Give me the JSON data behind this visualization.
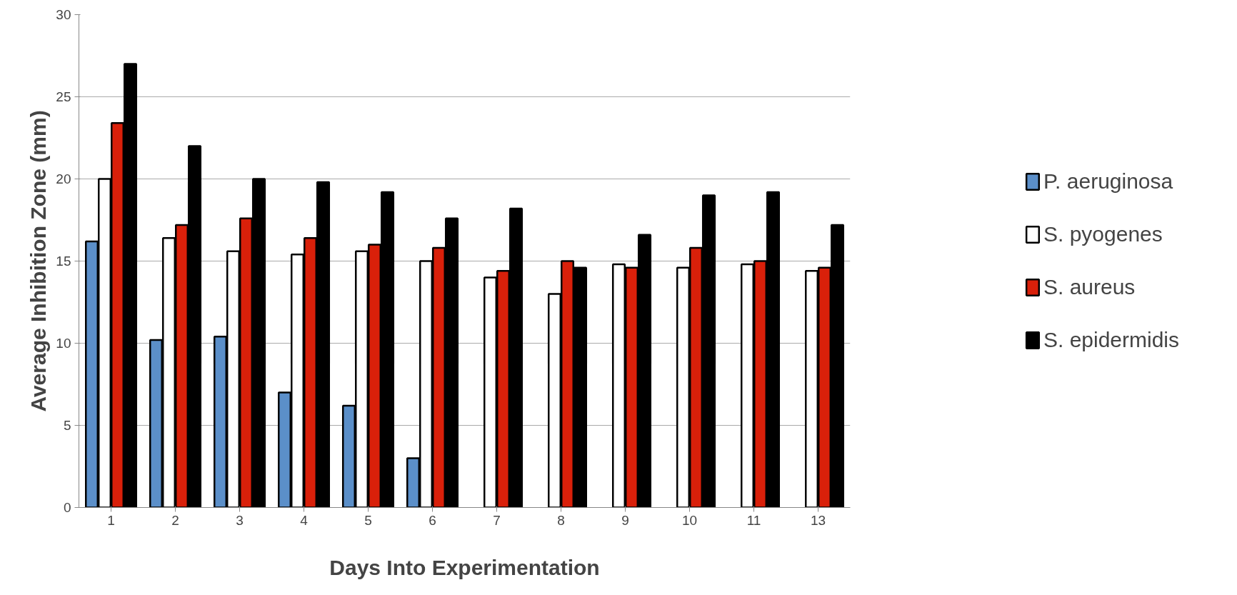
{
  "chart_data": {
    "type": "bar",
    "xlabel": "Days Into Experimentation",
    "ylabel": "Average Inhibition Zone (mm)",
    "categories": [
      "1",
      "2",
      "3",
      "4",
      "5",
      "6",
      "7",
      "8",
      "9",
      "10",
      "11",
      "13"
    ],
    "series": [
      {
        "name": "P. aeruginosa",
        "color": "#5b8fc9",
        "values": [
          16.2,
          10.2,
          10.4,
          7,
          6.2,
          3,
          null,
          null,
          null,
          null,
          null,
          null
        ]
      },
      {
        "name": "S. pyogenes",
        "color": "#ffffff",
        "values": [
          20,
          16.4,
          15.6,
          15.4,
          15.6,
          15,
          14,
          13,
          14.8,
          14.6,
          14.8,
          14.4
        ]
      },
      {
        "name": "S. aureus",
        "color": "#d9200a",
        "values": [
          23.4,
          17.2,
          17.6,
          16.4,
          16,
          15.8,
          14.4,
          15,
          14.6,
          15.8,
          15,
          14.6
        ]
      },
      {
        "name": "S. epidermidis",
        "color": "#000000",
        "values": [
          27,
          22,
          20,
          19.8,
          19.2,
          17.6,
          18.2,
          14.6,
          16.6,
          19,
          19.2,
          17.2
        ]
      }
    ],
    "ylim": [
      0,
      30
    ],
    "yticks": [
      0,
      5,
      10,
      15,
      20,
      25,
      30
    ],
    "grid": "y",
    "legend": "right"
  }
}
